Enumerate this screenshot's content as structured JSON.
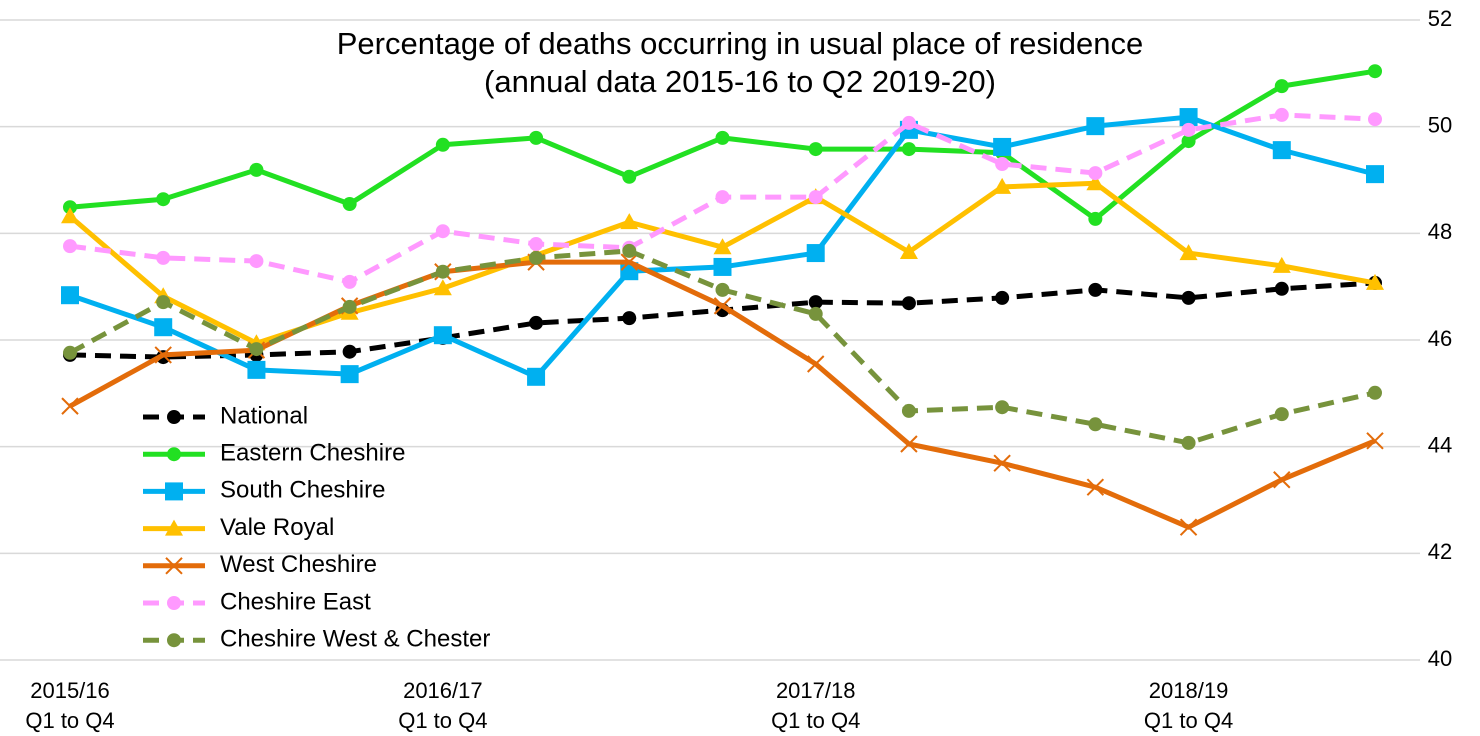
{
  "chart_data": {
    "type": "line",
    "title": "Percentage of deaths occurring in usual place of residence",
    "subtitle": "(annual data 2015-16 to Q2 2019-20)",
    "categories": [
      "2015/16\nQ1 to Q4",
      null,
      null,
      null,
      "2016/17\nQ1 to Q4",
      null,
      null,
      null,
      "2017/18\nQ1 to Q4",
      null,
      null,
      null,
      "2018/19\nQ1 to Q4",
      null,
      null
    ],
    "ylim": [
      40,
      52
    ],
    "yticks": [
      40,
      42,
      44,
      46,
      48,
      50,
      52
    ],
    "grid": true,
    "legend": "lower left",
    "series": [
      {
        "name": "National",
        "color": "#000000",
        "dash": true,
        "marker": "circle",
        "values": [
          45.72,
          45.68,
          45.72,
          45.78,
          46.04,
          46.32,
          46.41,
          46.56,
          46.71,
          46.69,
          46.79,
          46.94,
          46.79,
          46.96,
          47.07
        ]
      },
      {
        "name": "Eastern Cheshire",
        "color": "#22e022",
        "dash": false,
        "marker": "circle",
        "values": [
          48.49,
          48.64,
          49.19,
          48.55,
          49.66,
          49.79,
          49.06,
          49.79,
          49.58,
          49.58,
          49.51,
          48.27,
          49.73,
          50.76,
          51.04
        ]
      },
      {
        "name": "South Cheshire",
        "color": "#00b0f0",
        "dash": false,
        "marker": "square",
        "values": [
          46.84,
          46.24,
          45.44,
          45.36,
          46.09,
          45.31,
          47.29,
          47.37,
          47.63,
          49.94,
          49.62,
          50.01,
          50.18,
          49.56,
          49.11
        ]
      },
      {
        "name": "Vale Royal",
        "color": "#ffc000",
        "dash": false,
        "marker": "triangle",
        "values": [
          48.32,
          46.82,
          45.94,
          46.51,
          46.97,
          47.59,
          48.21,
          47.74,
          48.68,
          47.65,
          48.87,
          48.94,
          47.63,
          47.39,
          47.07
        ]
      },
      {
        "name": "West Cheshire",
        "color": "#e36c0a",
        "dash": false,
        "marker": "x",
        "values": [
          44.76,
          45.72,
          45.81,
          46.64,
          47.28,
          47.46,
          47.46,
          46.64,
          45.55,
          44.05,
          43.69,
          43.24,
          42.49,
          43.38,
          44.11
        ]
      },
      {
        "name": "Cheshire East",
        "color": "#ff99ff",
        "dash": true,
        "marker": "circle",
        "values": [
          47.76,
          47.54,
          47.48,
          47.09,
          48.04,
          47.8,
          47.73,
          48.68,
          48.68,
          50.07,
          49.3,
          49.13,
          49.94,
          50.22,
          50.14
        ]
      },
      {
        "name": "Cheshire West & Chester",
        "color": "#77933c",
        "dash": true,
        "marker": "circle",
        "values": [
          45.76,
          46.71,
          45.83,
          46.62,
          47.28,
          47.54,
          47.67,
          46.94,
          46.49,
          44.67,
          44.74,
          44.42,
          44.07,
          44.61,
          45.01
        ]
      }
    ]
  }
}
